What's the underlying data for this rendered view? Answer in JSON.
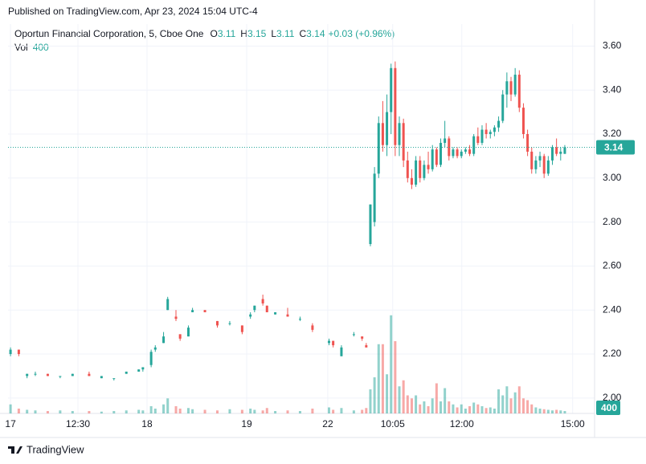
{
  "header": {
    "published": "Published on TradingView.com, Apr 23, 2024 15:04 UTC-4",
    "brand": "TradingView"
  },
  "chart_data": {
    "type": "candlestick",
    "legend": {
      "symbol": "Oportun Financial Corporation, 5, Cboe One",
      "o": "O",
      "h": "H",
      "l": "L",
      "c": "C",
      "change": "+0.03 (+0.96%)",
      "vol": "Vol"
    },
    "up_color": "#26a69a",
    "down_color": "#ef5350",
    "grid": true,
    "xlim": [
      17.4,
      159.2
    ],
    "xticks": [
      {
        "value": 18,
        "label": "17"
      },
      {
        "value": 34.3,
        "label": "12:30"
      },
      {
        "value": 51,
        "label": "18"
      },
      {
        "value": 75.1,
        "label": "19"
      },
      {
        "value": 94.7,
        "label": "22"
      },
      {
        "value": 110.4,
        "label": "10:05"
      },
      {
        "value": 127.1,
        "label": "12:00"
      },
      {
        "value": 153.9,
        "label": "15:00"
      }
    ],
    "ylim": [
      1.93,
      3.7
    ],
    "yticks": [
      {
        "value": 2,
        "label": "2.00"
      },
      {
        "value": 2.2,
        "label": "2.20"
      },
      {
        "value": 2.4,
        "label": "2.40"
      },
      {
        "value": 2.6,
        "label": "2.60"
      },
      {
        "value": 2.8,
        "label": "2.80"
      },
      {
        "value": 3,
        "label": "3.00"
      },
      {
        "value": 3.2,
        "label": "3.20"
      },
      {
        "value": 3.4,
        "label": "3.40"
      },
      {
        "value": 3.6,
        "label": "3.60"
      }
    ],
    "volume_lim": [
      0,
      20000
    ],
    "x": [
      18,
      20,
      22,
      24,
      27,
      30,
      33,
      37,
      40,
      43,
      46,
      49,
      50,
      52,
      53,
      55,
      56,
      58,
      59,
      61,
      62,
      65,
      68,
      71,
      74,
      76,
      77,
      79,
      80,
      82,
      85,
      88,
      91,
      95,
      96,
      98,
      101,
      103,
      104,
      105,
      106,
      107,
      108,
      109,
      110,
      111,
      112,
      113,
      114,
      115,
      116,
      117,
      118,
      119,
      120,
      121,
      122,
      123,
      124,
      125,
      126,
      127,
      128,
      129,
      130,
      131,
      132,
      133,
      134,
      135,
      136,
      137,
      138,
      139,
      140,
      141,
      142,
      143,
      144,
      145,
      146,
      147,
      148,
      149,
      150,
      151,
      152
    ],
    "open": [
      2.2,
      2.22,
      2.1,
      2.11,
      2.11,
      2.1,
      2.1,
      2.11,
      2.09,
      2.09,
      2.11,
      2.12,
      2.13,
      2.15,
      2.22,
      2.25,
      2.4,
      2.37,
      2.29,
      2.28,
      2.39,
      2.4,
      2.35,
      2.34,
      2.33,
      2.37,
      2.4,
      2.45,
      2.42,
      2.38,
      2.38,
      2.36,
      2.33,
      2.25,
      2.26,
      2.19,
      2.29,
      2.28,
      2.24,
      2.7,
      2.8,
      3.02,
      3.25,
      3.15,
      3.3,
      3.5,
      3.15,
      3.25,
      3.08,
      3.0,
      2.97,
      3.08,
      3.0,
      3.06,
      3.04,
      3.13,
      3.06,
      3.16,
      3.18,
      3.1,
      3.13,
      3.1,
      3.12,
      3.13,
      3.11,
      3.19,
      3.16,
      3.22,
      3.2,
      3.21,
      3.23,
      3.26,
      3.38,
      3.44,
      3.38,
      3.47,
      3.32,
      3.2,
      3.12,
      3.04,
      3.08,
      3.1,
      3.02,
      3.08,
      3.14,
      3.11,
      3.11
    ],
    "high": [
      2.23,
      2.22,
      2.11,
      2.12,
      2.11,
      2.1,
      2.11,
      2.12,
      2.1,
      2.09,
      2.12,
      2.13,
      2.14,
      2.22,
      2.24,
      2.3,
      2.46,
      2.4,
      2.29,
      2.33,
      2.41,
      2.4,
      2.35,
      2.35,
      2.33,
      2.39,
      2.42,
      2.47,
      2.42,
      2.39,
      2.41,
      2.37,
      2.34,
      2.27,
      2.26,
      2.24,
      2.3,
      2.28,
      2.25,
      2.88,
      3.05,
      3.28,
      3.35,
      3.38,
      3.52,
      3.53,
      3.28,
      3.27,
      3.12,
      3.04,
      3.1,
      3.1,
      3.08,
      3.12,
      3.15,
      3.14,
      3.18,
      3.26,
      3.19,
      3.14,
      3.14,
      3.13,
      3.14,
      3.15,
      3.2,
      3.23,
      3.24,
      3.25,
      3.22,
      3.24,
      3.28,
      3.4,
      3.48,
      3.46,
      3.5,
      3.49,
      3.34,
      3.22,
      3.14,
      3.1,
      3.12,
      3.11,
      3.1,
      3.15,
      3.18,
      3.14,
      3.15
    ],
    "low": [
      2.19,
      2.19,
      2.09,
      2.1,
      2.1,
      2.09,
      2.1,
      2.1,
      2.09,
      2.08,
      2.11,
      2.12,
      2.12,
      2.14,
      2.21,
      2.25,
      2.4,
      2.35,
      2.26,
      2.28,
      2.39,
      2.39,
      2.32,
      2.33,
      2.29,
      2.36,
      2.39,
      2.42,
      2.39,
      2.38,
      2.37,
      2.35,
      2.3,
      2.24,
      2.23,
      2.19,
      2.28,
      2.26,
      2.23,
      2.69,
      2.78,
      3.0,
      3.12,
      3.1,
      3.2,
      3.1,
      3.1,
      3.05,
      2.98,
      2.95,
      2.96,
      2.98,
      2.99,
      3.02,
      3.03,
      3.05,
      3.05,
      3.14,
      3.08,
      3.09,
      3.09,
      3.09,
      3.11,
      3.1,
      3.1,
      3.15,
      3.15,
      3.18,
      3.18,
      3.19,
      3.21,
      3.25,
      3.32,
      3.35,
      3.37,
      3.3,
      3.18,
      3.1,
      3.02,
      3.02,
      3.05,
      3.0,
      3.01,
      3.06,
      3.1,
      3.08,
      3.11
    ],
    "close": [
      2.22,
      2.2,
      2.11,
      2.11,
      2.1,
      2.1,
      2.11,
      2.1,
      2.1,
      2.09,
      2.12,
      2.13,
      2.14,
      2.21,
      2.23,
      2.28,
      2.45,
      2.36,
      2.27,
      2.32,
      2.4,
      2.39,
      2.33,
      2.34,
      2.3,
      2.38,
      2.42,
      2.43,
      2.39,
      2.39,
      2.37,
      2.36,
      2.31,
      2.26,
      2.24,
      2.23,
      2.29,
      2.27,
      2.23,
      2.88,
      3.02,
      3.25,
      3.15,
      3.3,
      3.5,
      3.15,
      3.25,
      3.08,
      3.0,
      2.97,
      3.08,
      3.0,
      3.06,
      3.04,
      3.13,
      3.06,
      3.16,
      3.18,
      3.1,
      3.13,
      3.1,
      3.12,
      3.13,
      3.11,
      3.19,
      3.16,
      3.22,
      3.2,
      3.21,
      3.23,
      3.26,
      3.38,
      3.44,
      3.38,
      3.47,
      3.32,
      3.2,
      3.12,
      3.04,
      3.08,
      3.1,
      3.02,
      3.08,
      3.14,
      3.11,
      3.12,
      3.14
    ],
    "volume": [
      1500,
      800,
      600,
      500,
      400,
      500,
      400,
      400,
      300,
      400,
      500,
      600,
      500,
      1200,
      800,
      1500,
      2500,
      1200,
      800,
      900,
      700,
      600,
      500,
      700,
      600,
      800,
      600,
      500,
      900,
      400,
      500,
      400,
      800,
      1000,
      600,
      900,
      500,
      600,
      900,
      4000,
      6000,
      11500,
      11500,
      6500,
      16300,
      12000,
      4500,
      5500,
      3000,
      2500,
      3000,
      1500,
      2000,
      1200,
      2500,
      5000,
      2000,
      4200,
      2000,
      1500,
      1000,
      1500,
      800,
      1200,
      1800,
      1500,
      1200,
      900,
      1000,
      800,
      4000,
      3000,
      4500,
      2500,
      3500,
      4500,
      2500,
      2200,
      1500,
      1000,
      800,
      700,
      600,
      500,
      600,
      500,
      400
    ]
  }
}
